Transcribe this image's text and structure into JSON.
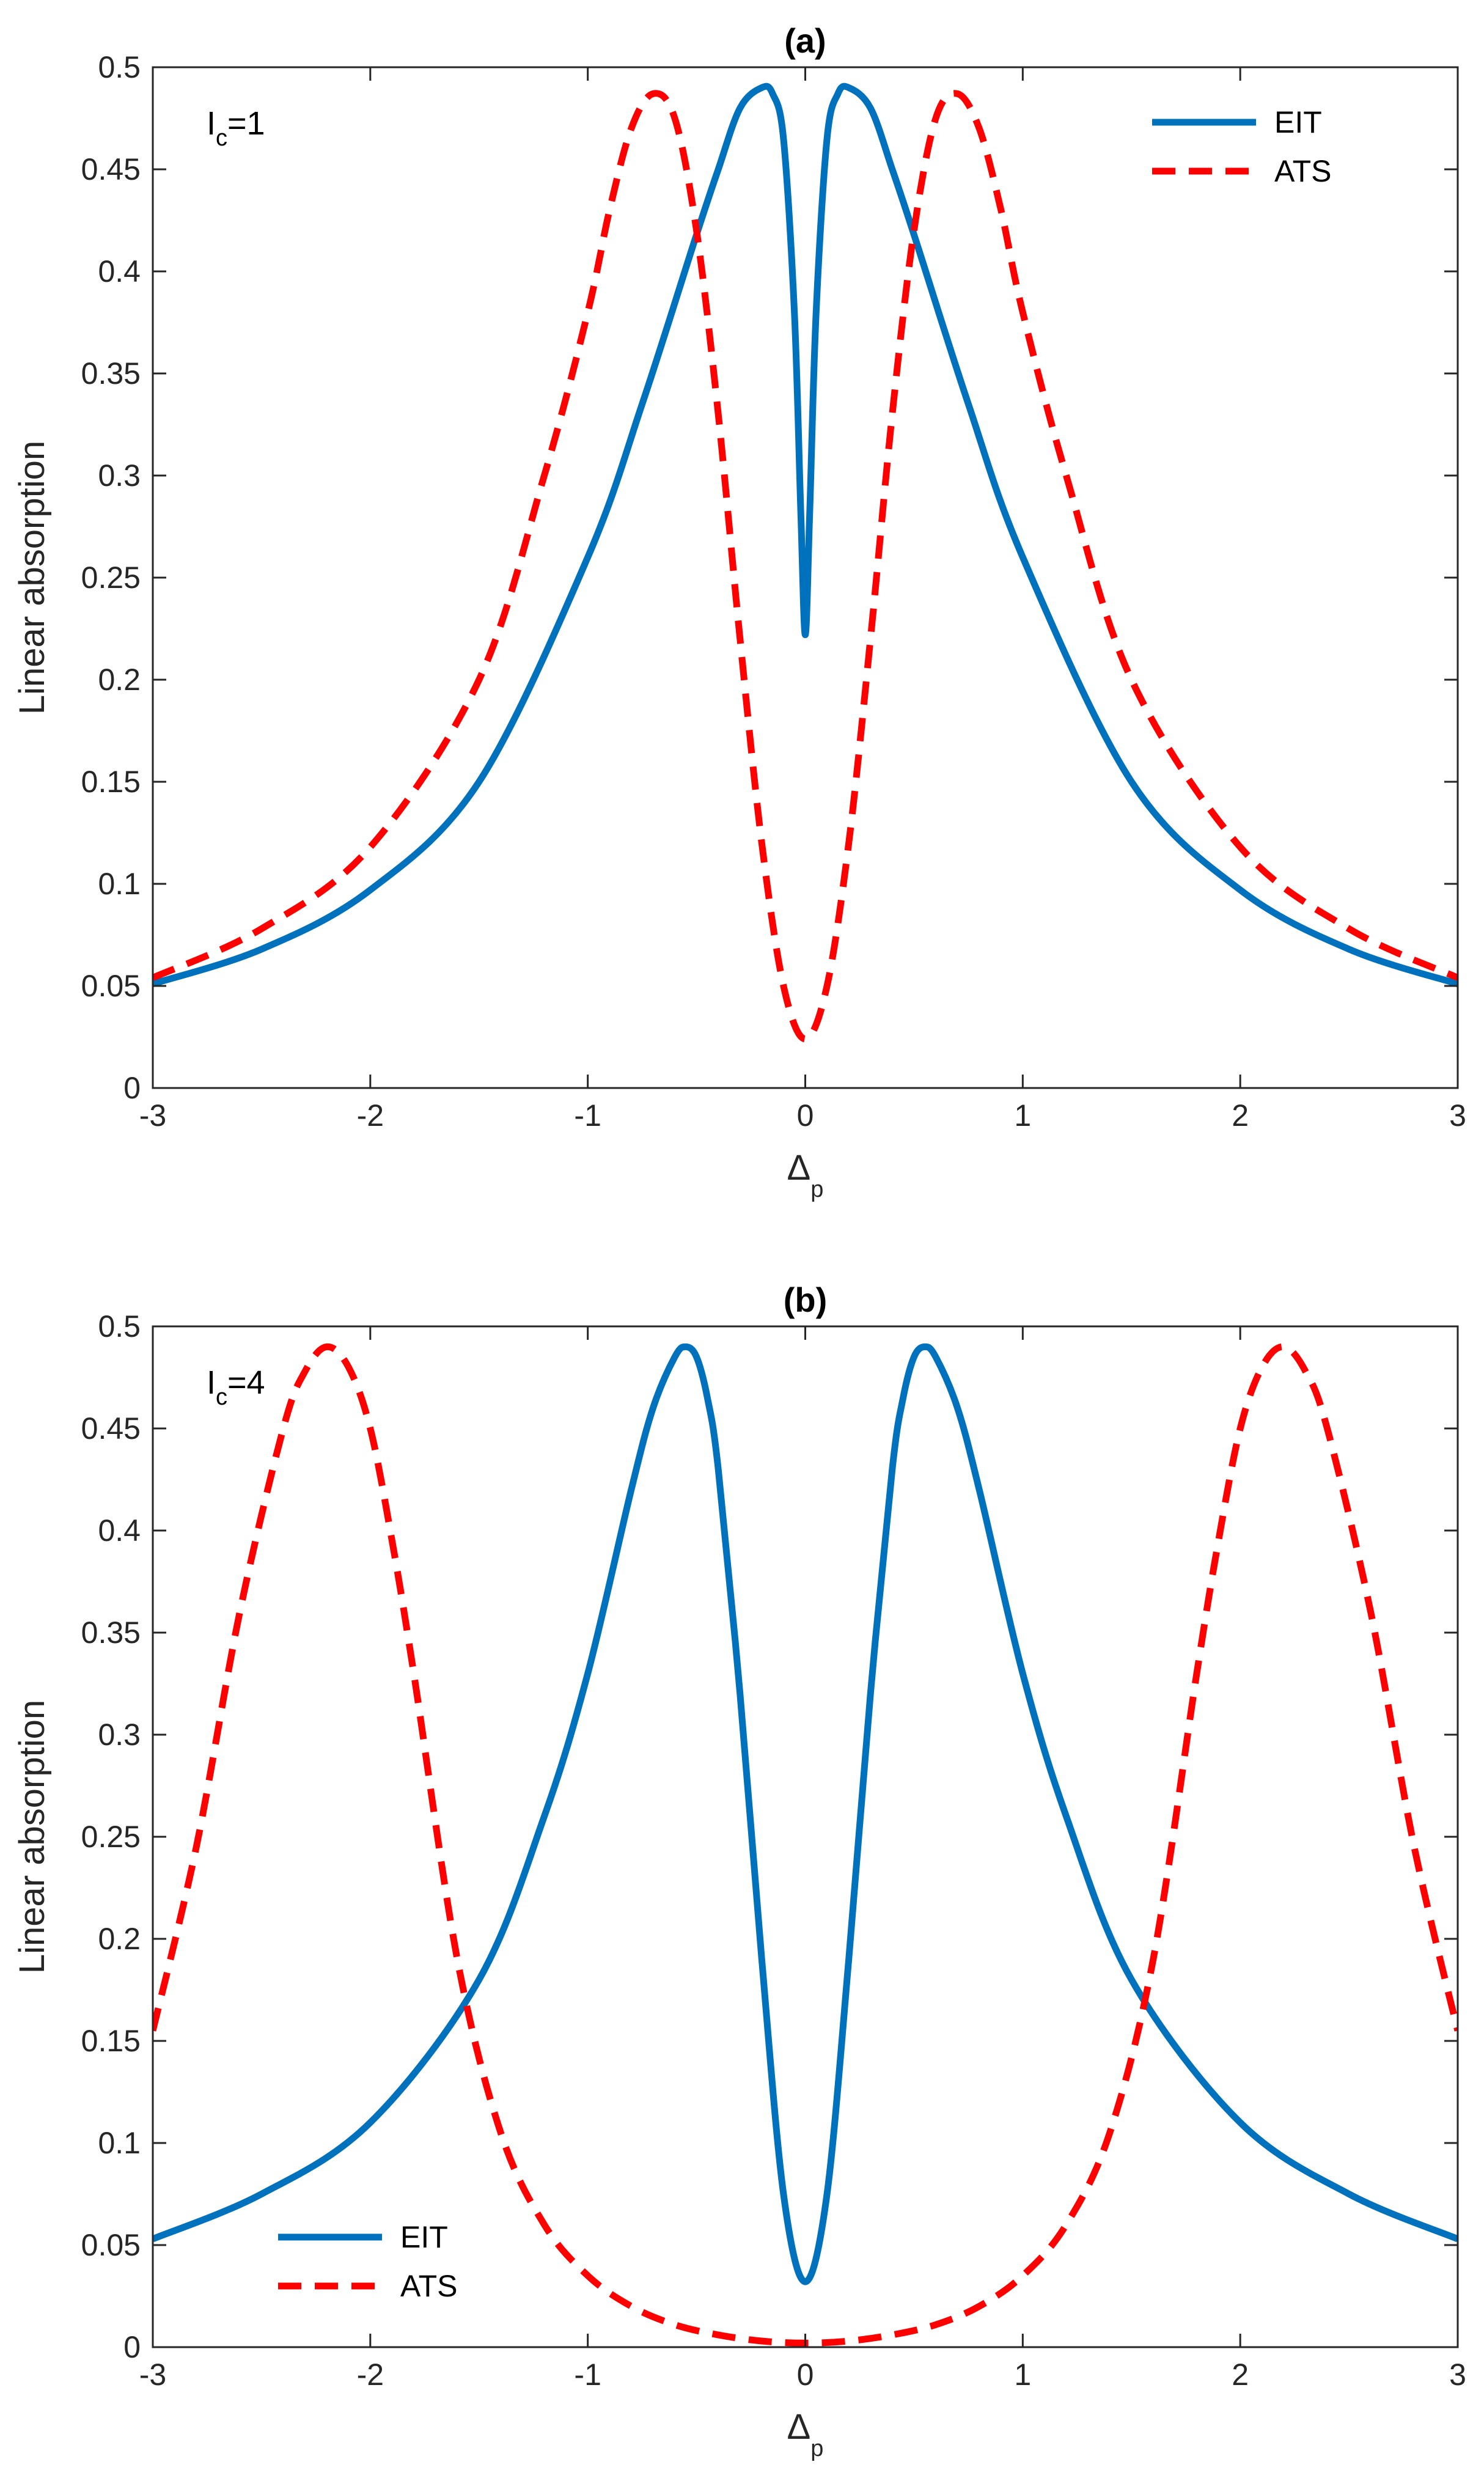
{
  "chart_data": [
    {
      "type": "line",
      "title": "(a)",
      "annotation": {
        "base": "I",
        "sub": "c",
        "rest": "=1"
      },
      "xlabel": {
        "base": "Δ",
        "sub": "p"
      },
      "ylabel": "Linear absorption",
      "xlim": [
        -3,
        3
      ],
      "ylim": [
        0,
        0.5
      ],
      "xticks": [
        "-3",
        "-2",
        "-1",
        "0",
        "1",
        "2",
        "3"
      ],
      "yticks": [
        "0",
        "0.05",
        "0.1",
        "0.15",
        "0.2",
        "0.25",
        "0.3",
        "0.35",
        "0.4",
        "0.45",
        "0.5"
      ],
      "legend_position": "top-right",
      "series": [
        {
          "name": "EIT",
          "color": "#0072BD",
          "dash": "solid",
          "x": [
            -3,
            -2.5,
            -2,
            -1.5,
            -1,
            -0.75,
            -0.5,
            -0.4,
            -0.3,
            -0.2,
            -0.15,
            -0.1,
            -0.05,
            -0.02,
            0,
            0.02,
            0.05,
            0.1,
            0.15,
            0.2,
            0.3,
            0.4,
            0.5,
            0.75,
            1,
            1.5,
            2,
            2.5,
            3
          ],
          "y": [
            0.051,
            0.068,
            0.097,
            0.15,
            0.26,
            0.335,
            0.418,
            0.45,
            0.48,
            0.49,
            0.487,
            0.465,
            0.38,
            0.28,
            0.222,
            0.28,
            0.38,
            0.465,
            0.487,
            0.49,
            0.48,
            0.45,
            0.418,
            0.335,
            0.26,
            0.15,
            0.097,
            0.068,
            0.051
          ]
        },
        {
          "name": "ATS",
          "color": "#FF0000",
          "dash": "dashed",
          "x": [
            -3,
            -2.5,
            -2,
            -1.5,
            -1.2,
            -1,
            -0.9,
            -0.8,
            -0.7,
            -0.6,
            -0.5,
            -0.4,
            -0.3,
            -0.2,
            -0.1,
            0,
            0.1,
            0.2,
            0.3,
            0.4,
            0.5,
            0.6,
            0.7,
            0.8,
            0.9,
            1,
            1.2,
            1.5,
            2,
            2.5,
            3
          ],
          "y": [
            0.054,
            0.078,
            0.118,
            0.2,
            0.3,
            0.38,
            0.43,
            0.47,
            0.487,
            0.475,
            0.42,
            0.33,
            0.22,
            0.12,
            0.05,
            0.024,
            0.05,
            0.12,
            0.22,
            0.33,
            0.42,
            0.475,
            0.487,
            0.47,
            0.43,
            0.38,
            0.3,
            0.2,
            0.118,
            0.078,
            0.054
          ]
        }
      ]
    },
    {
      "type": "line",
      "title": "(b)",
      "annotation": {
        "base": "I",
        "sub": "c",
        "rest": "=4"
      },
      "xlabel": {
        "base": "Δ",
        "sub": "p"
      },
      "ylabel": "Linear absorption",
      "xlim": [
        -3,
        3
      ],
      "ylim": [
        0,
        0.5
      ],
      "xticks": [
        "-3",
        "-2",
        "-1",
        "0",
        "1",
        "2",
        "3"
      ],
      "yticks": [
        "0",
        "0.05",
        "0.1",
        "0.15",
        "0.2",
        "0.25",
        "0.3",
        "0.35",
        "0.4",
        "0.45",
        "0.5"
      ],
      "legend_position": "bottom-left",
      "series": [
        {
          "name": "EIT",
          "color": "#0072BD",
          "dash": "solid",
          "x": [
            -3,
            -2.5,
            -2,
            -1.5,
            -1.2,
            -1,
            -0.8,
            -0.7,
            -0.6,
            -0.55,
            -0.5,
            -0.45,
            -0.4,
            -0.3,
            -0.2,
            -0.1,
            0,
            0.1,
            0.2,
            0.3,
            0.4,
            0.45,
            0.5,
            0.55,
            0.6,
            0.7,
            0.8,
            1,
            1.2,
            1.5,
            2,
            2.5,
            3
          ],
          "y": [
            0.053,
            0.075,
            0.11,
            0.18,
            0.26,
            0.33,
            0.42,
            0.46,
            0.485,
            0.49,
            0.485,
            0.465,
            0.43,
            0.32,
            0.19,
            0.075,
            0.032,
            0.075,
            0.19,
            0.32,
            0.43,
            0.465,
            0.485,
            0.49,
            0.485,
            0.46,
            0.42,
            0.33,
            0.26,
            0.18,
            0.11,
            0.075,
            0.053
          ]
        },
        {
          "name": "ATS",
          "color": "#FF0000",
          "dash": "dashed",
          "x": [
            -3,
            -2.8,
            -2.6,
            -2.4,
            -2.3,
            -2.2,
            -2.1,
            -2,
            -1.9,
            -1.8,
            -1.6,
            -1.4,
            -1.2,
            -1,
            -0.8,
            -0.6,
            -0.4,
            -0.2,
            0,
            0.2,
            0.4,
            0.6,
            0.8,
            1,
            1.2,
            1.4,
            1.6,
            1.8,
            1.9,
            2,
            2.1,
            2.2,
            2.3,
            2.4,
            2.6,
            2.8,
            3
          ],
          "y": [
            0.155,
            0.245,
            0.36,
            0.45,
            0.478,
            0.49,
            0.48,
            0.45,
            0.395,
            0.33,
            0.19,
            0.105,
            0.06,
            0.035,
            0.02,
            0.011,
            0.006,
            0.003,
            0.002,
            0.003,
            0.006,
            0.011,
            0.02,
            0.035,
            0.06,
            0.105,
            0.19,
            0.33,
            0.395,
            0.45,
            0.48,
            0.49,
            0.478,
            0.45,
            0.36,
            0.245,
            0.155
          ]
        }
      ]
    }
  ]
}
